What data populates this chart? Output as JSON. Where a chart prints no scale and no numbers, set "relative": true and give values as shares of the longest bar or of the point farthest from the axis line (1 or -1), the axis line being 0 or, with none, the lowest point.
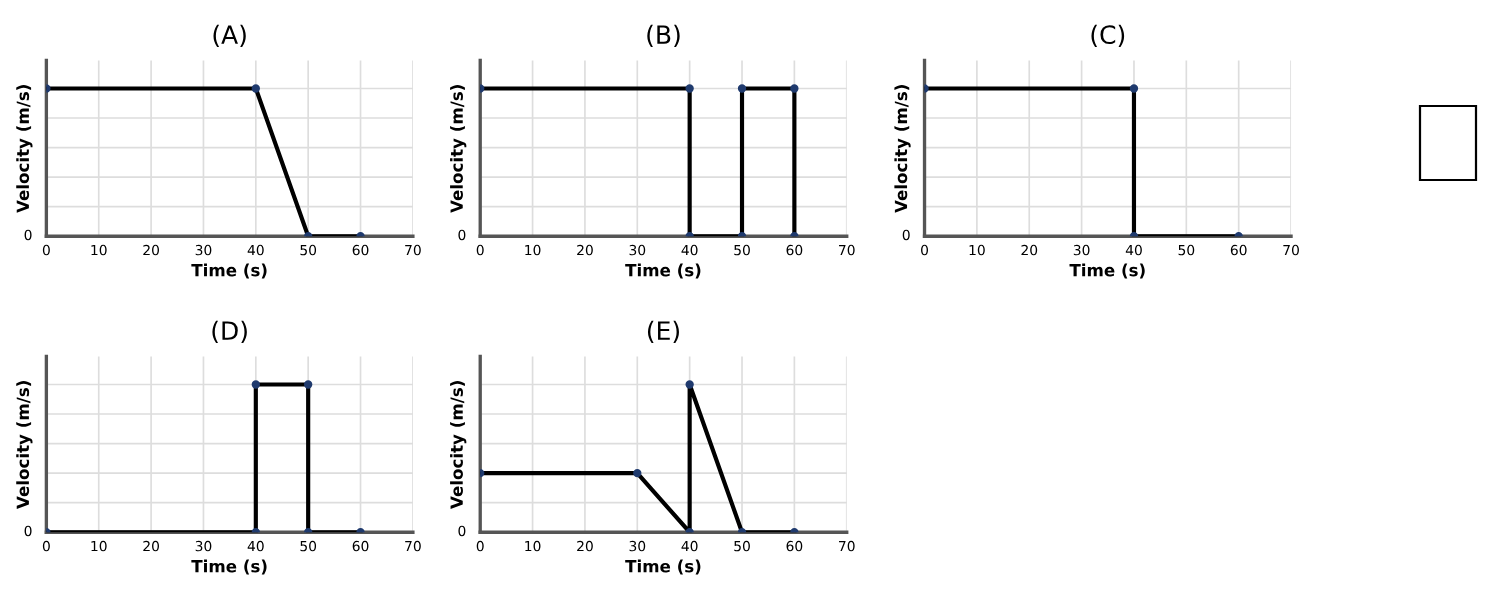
{
  "chart_data": [
    {
      "type": "line",
      "title": "(A)",
      "annotations": [
        "0"
      ],
      "xlabel": "Time (s)",
      "ylabel": "Velocity (m/s)",
      "relative": true,
      "x": [
        0,
        40,
        50,
        60
      ],
      "values": [
        1,
        1,
        0,
        0
      ],
      "color": "#000000",
      "marker": "circle",
      "xlim": [
        0,
        70
      ],
      "xticks": [
        0,
        10,
        20,
        30,
        40,
        50,
        60,
        70
      ],
      "grid": true
    },
    {
      "type": "line",
      "title": "(B)",
      "annotations": [
        "0"
      ],
      "xlabel": "Time (s)",
      "ylabel": "Velocity (m/s)",
      "relative": true,
      "x": [
        0,
        40,
        40,
        50,
        50,
        60,
        60
      ],
      "values": [
        1,
        1,
        0,
        0,
        1,
        1,
        0
      ],
      "color": "#000000",
      "marker": "circle",
      "xlim": [
        0,
        70
      ],
      "xticks": [
        0,
        10,
        20,
        30,
        40,
        50,
        60,
        70
      ],
      "grid": true
    },
    {
      "type": "line",
      "title": "(C)",
      "annotations": [
        "0"
      ],
      "xlabel": "Time (s)",
      "ylabel": "Velocity (m/s)",
      "relative": true,
      "x": [
        0,
        40,
        40,
        60
      ],
      "values": [
        1,
        1,
        0,
        0
      ],
      "color": "#000000",
      "marker": "circle",
      "xlim": [
        0,
        70
      ],
      "xticks": [
        0,
        10,
        20,
        30,
        40,
        50,
        60,
        70
      ],
      "grid": true
    },
    {
      "type": "line",
      "title": "(D)",
      "annotations": [
        "0"
      ],
      "xlabel": "Time (s)",
      "ylabel": "Velocity (m/s)",
      "relative": true,
      "x": [
        0,
        40,
        40,
        50,
        50,
        60
      ],
      "values": [
        0,
        0,
        1,
        1,
        0,
        0
      ],
      "color": "#000000",
      "marker": "circle",
      "xlim": [
        0,
        70
      ],
      "xticks": [
        0,
        10,
        20,
        30,
        40,
        50,
        60,
        70
      ],
      "grid": true
    },
    {
      "type": "line",
      "title": "(E)",
      "annotations": [
        "0"
      ],
      "xlabel": "Time (s)",
      "ylabel": "Velocity (m/s)",
      "relative": true,
      "x": [
        0,
        30,
        40,
        40,
        50,
        60
      ],
      "values": [
        0.4,
        0.4,
        0,
        1,
        0,
        0
      ],
      "color": "#000000",
      "marker": "circle",
      "xlim": [
        0,
        70
      ],
      "xticks": [
        0,
        10,
        20,
        30,
        40,
        50,
        60,
        70
      ],
      "grid": true
    }
  ]
}
